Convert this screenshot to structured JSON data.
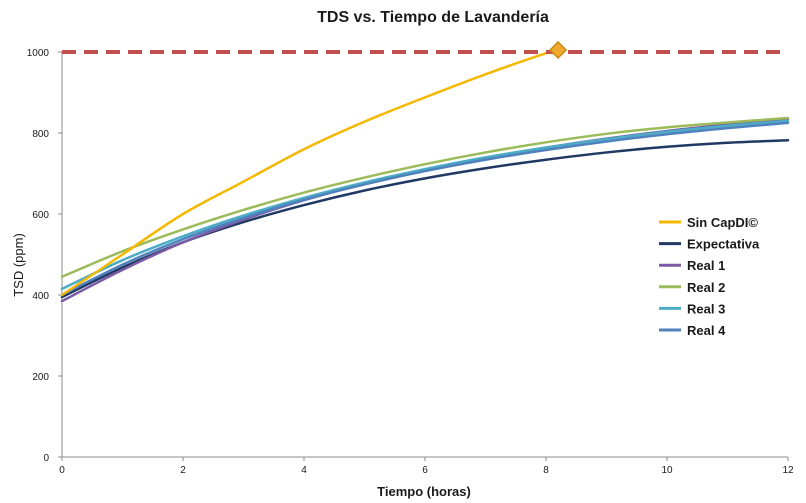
{
  "chart_data": {
    "type": "line",
    "title": "TDS vs. Tiempo de Lavandería",
    "xlabel": "Tiempo (horas)",
    "ylabel": "TSD (ppm)",
    "xlim": [
      0,
      12
    ],
    "ylim": [
      0,
      1000
    ],
    "x_ticks": [
      "0",
      "2",
      "4",
      "6",
      "8",
      "10",
      "12"
    ],
    "y_ticks": [
      "0",
      "200",
      "400",
      "600",
      "800",
      "1000"
    ],
    "grid": false,
    "legend_position": "right",
    "x": [
      0,
      1,
      2,
      3,
      4,
      5,
      6,
      7,
      8,
      9,
      10,
      11,
      12
    ],
    "series": [
      {
        "name": "Sin CapDI©",
        "color": "#f5b800",
        "x": [
          0,
          1,
          2,
          3,
          4,
          5,
          6,
          7,
          8,
          8.2
        ],
        "values": [
          400,
          500,
          600,
          680,
          760,
          828,
          888,
          945,
          997,
          1005
        ]
      },
      {
        "name": "Expectativa",
        "color": "#1f3864",
        "values": [
          395,
          468,
          530,
          580,
          622,
          658,
          688,
          713,
          734,
          752,
          766,
          776,
          782
        ]
      },
      {
        "name": "Real 1",
        "color": "#7b5aa6",
        "values": [
          385,
          462,
          530,
          586,
          634,
          675,
          710,
          739,
          764,
          786,
          805,
          821,
          834
        ]
      },
      {
        "name": "Real 2",
        "color": "#9bbb59",
        "values": [
          445,
          508,
          562,
          610,
          653,
          690,
          723,
          752,
          777,
          798,
          814,
          826,
          837
        ]
      },
      {
        "name": "Real 3",
        "color": "#4bacc6",
        "values": [
          415,
          486,
          545,
          596,
          640,
          678,
          711,
          740,
          764,
          785,
          803,
          818,
          830
        ]
      },
      {
        "name": "Real 4",
        "color": "#4f81bd",
        "values": [
          400,
          475,
          538,
          590,
          635,
          673,
          706,
          734,
          758,
          779,
          797,
          812,
          825
        ]
      }
    ],
    "reference_line": {
      "y": 1000,
      "color": "#c0504d"
    },
    "marker": {
      "x": 8.2,
      "y": 1005,
      "color": "#f0a830"
    }
  }
}
